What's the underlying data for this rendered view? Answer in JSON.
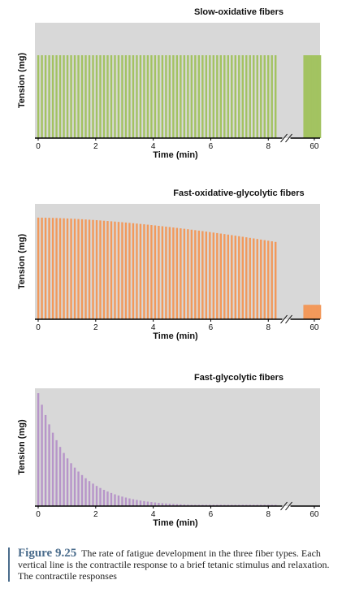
{
  "chart_data": [
    {
      "type": "bar",
      "title": "Slow-oxidative fibers",
      "xlabel": "Time (min)",
      "ylabel": "Tension (mg)",
      "x_ticks": [
        "0",
        "2",
        "4",
        "6",
        "8",
        "60"
      ],
      "x_range": [
        0,
        9.8
      ],
      "ylim": [
        0,
        1
      ],
      "color": "#a3c361",
      "axis_break_at": 8.6,
      "groups": [
        {
          "x_start": 0.0,
          "x_end": 8.25,
          "bars": 66,
          "values_start": 0.75,
          "values_end": 0.75,
          "decay": "constant"
        },
        {
          "x_start": 9.25,
          "x_end": 9.8,
          "bars": 16,
          "values_start": 0.75,
          "values_end": 0.75,
          "decay": "constant"
        }
      ]
    },
    {
      "type": "bar",
      "title": "Fast-oxidative-glycolytic fibers",
      "xlabel": "Time (min)",
      "ylabel": "Tension (mg)",
      "x_ticks": [
        "0",
        "2",
        "4",
        "6",
        "8",
        "60"
      ],
      "x_range": [
        0,
        9.8
      ],
      "ylim": [
        0,
        1
      ],
      "color": "#f2995b",
      "axis_break_at": 8.6,
      "groups": [
        {
          "x_start": 0.0,
          "x_end": 8.25,
          "bars": 66,
          "values_start": 0.92,
          "values_end": 0.7,
          "decay": "slow"
        },
        {
          "x_start": 9.25,
          "x_end": 9.8,
          "bars": 16,
          "values_start": 0.13,
          "values_end": 0.13,
          "decay": "constant"
        }
      ]
    },
    {
      "type": "bar",
      "title": "Fast-glycolytic fibers",
      "xlabel": "Time (min)",
      "ylabel": "Tension (mg)",
      "x_ticks": [
        "0",
        "2",
        "4",
        "6",
        "8",
        "60"
      ],
      "x_range": [
        0,
        9.8
      ],
      "ylim": [
        0,
        1
      ],
      "color": "#b795c9",
      "axis_break_at": 8.6,
      "groups": [
        {
          "x_start": 0.0,
          "x_end": 8.25,
          "bars": 66,
          "values_start": 1.0,
          "values_end": 0.0,
          "decay": "exponential"
        }
      ]
    }
  ],
  "caption": {
    "label": "Figure 9.25",
    "text": "The rate of fatigue development in the three fiber types. Each vertical line is the contractile response to a brief tetanic stimulus and relaxation. The contractile responses"
  }
}
